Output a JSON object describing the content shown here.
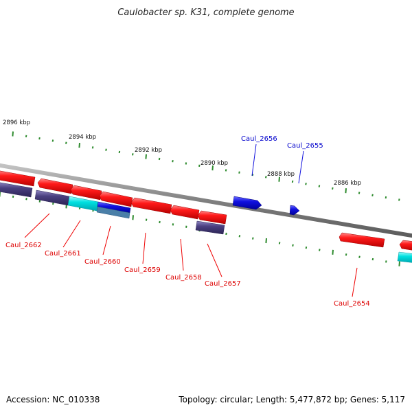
{
  "title": "Caulobacter sp. K31, complete genome",
  "footer": {
    "accession": "Accession: NC_010338",
    "summary": "Topology: circular; Length: 5,477,872 bp; Genes: 5,117"
  },
  "ticks": {
    "color": "#2e8b2e",
    "labels": [
      "2896 kbp",
      "2894 kbp",
      "2892 kbp",
      "2890 kbp",
      "2888 kbp",
      "2886 kbp"
    ]
  },
  "colors": {
    "reverse_gene": "#ee0000",
    "forward_gene": "#1010dd",
    "cds_dark": "#4a3f80",
    "cds_cyan": "#00dede",
    "backbone": "#888888"
  },
  "gene_labels": {
    "forward": [
      "Caul_2656",
      "Caul_2655"
    ],
    "reverse": [
      "Caul_2662",
      "Caul_2661",
      "Caul_2660",
      "Caul_2659",
      "Caul_2658",
      "Caul_2657",
      "Caul_2654"
    ]
  }
}
